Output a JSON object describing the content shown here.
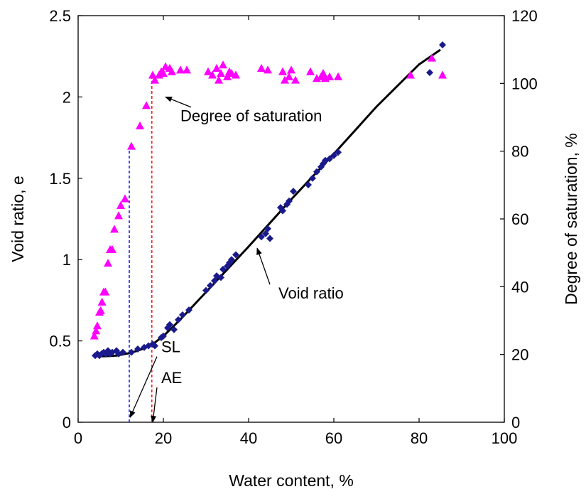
{
  "chart_data": {
    "type": "scatter",
    "xlabel": "Water content, %",
    "ylabel_left": "Void ratio, e",
    "ylabel_right": "Degree of saturation, %",
    "xlim": [
      0,
      100
    ],
    "ylim_left": [
      0,
      2.5
    ],
    "ylim_right": [
      0,
      120
    ],
    "grid": false,
    "x_ticks": [
      "0",
      "20",
      "40",
      "60",
      "80",
      "100"
    ],
    "y_left_ticks": [
      "0",
      "0.5",
      "1",
      "1.5",
      "2",
      "2.5"
    ],
    "y_right_ticks": [
      "0",
      "20",
      "40",
      "60",
      "80",
      "100",
      "120"
    ],
    "series": [
      {
        "axis": "left",
        "marker": "diamond",
        "color": "#1a1a8c",
        "points": [
          [
            4,
            0.41
          ],
          [
            4.5,
            0.42
          ],
          [
            5,
            0.41
          ],
          [
            5.5,
            0.42
          ],
          [
            6,
            0.43
          ],
          [
            6.5,
            0.42
          ],
          [
            7,
            0.44
          ],
          [
            7.5,
            0.42
          ],
          [
            8,
            0.43
          ],
          [
            9,
            0.44
          ],
          [
            9.5,
            0.42
          ],
          [
            10.5,
            0.43
          ],
          [
            12.5,
            0.43
          ],
          [
            14,
            0.45
          ],
          [
            15.5,
            0.46
          ],
          [
            16.5,
            0.47
          ],
          [
            17.5,
            0.48
          ],
          [
            18,
            0.47
          ],
          [
            19.5,
            0.52
          ],
          [
            20,
            0.53
          ],
          [
            21,
            0.58
          ],
          [
            21.5,
            0.6
          ],
          [
            22.5,
            0.57
          ],
          [
            23.5,
            0.63
          ],
          [
            24.5,
            0.66
          ],
          [
            26,
            0.69
          ],
          [
            30,
            0.81
          ],
          [
            31,
            0.84
          ],
          [
            32,
            0.87
          ],
          [
            32.5,
            0.9
          ],
          [
            33.5,
            0.89
          ],
          [
            34,
            0.94
          ],
          [
            35,
            0.96
          ],
          [
            35.5,
            0.98
          ],
          [
            36,
            1.0
          ],
          [
            37,
            1.03
          ],
          [
            43,
            1.14
          ],
          [
            44,
            1.16
          ],
          [
            44.5,
            1.19
          ],
          [
            45,
            1.13
          ],
          [
            47.5,
            1.32
          ],
          [
            48,
            1.3
          ],
          [
            49,
            1.34
          ],
          [
            49.5,
            1.36
          ],
          [
            50.5,
            1.42
          ],
          [
            54,
            1.46
          ],
          [
            55,
            1.5
          ],
          [
            56,
            1.54
          ],
          [
            57,
            1.57
          ],
          [
            57.5,
            1.59
          ],
          [
            58,
            1.61
          ],
          [
            59,
            1.62
          ],
          [
            60,
            1.64
          ],
          [
            61,
            1.66
          ],
          [
            82.5,
            2.15
          ],
          [
            85.5,
            2.32
          ]
        ]
      },
      {
        "axis": "right",
        "marker": "triangle",
        "color": "#ff00ff",
        "points": [
          [
            3.8,
            25.5
          ],
          [
            4.2,
            27
          ],
          [
            4.5,
            28.5
          ],
          [
            5,
            32.5
          ],
          [
            5.3,
            33
          ],
          [
            5.6,
            35.5
          ],
          [
            6,
            38.5
          ],
          [
            6.4,
            38.5
          ],
          [
            7,
            47
          ],
          [
            7.5,
            51
          ],
          [
            8,
            51
          ],
          [
            8.5,
            57
          ],
          [
            9.5,
            61
          ],
          [
            10,
            64
          ],
          [
            11,
            66
          ],
          [
            12.5,
            81.5
          ],
          [
            14.5,
            87.5
          ],
          [
            16,
            93.5
          ],
          [
            17.5,
            102.5
          ],
          [
            18,
            101
          ],
          [
            19,
            102.5
          ],
          [
            19.5,
            103.5
          ],
          [
            20,
            103
          ],
          [
            20.5,
            105
          ],
          [
            21.5,
            104.5
          ],
          [
            22,
            103.5
          ],
          [
            24,
            104
          ],
          [
            25.5,
            104
          ],
          [
            30.5,
            103.5
          ],
          [
            31.5,
            102.5
          ],
          [
            32.5,
            104.5
          ],
          [
            33,
            101
          ],
          [
            33.5,
            103
          ],
          [
            34,
            105.5
          ],
          [
            35,
            102
          ],
          [
            35.5,
            103.5
          ],
          [
            36,
            103
          ],
          [
            37,
            102.5
          ],
          [
            43,
            104.5
          ],
          [
            44.5,
            104
          ],
          [
            48,
            103.5
          ],
          [
            48.5,
            101
          ],
          [
            49.5,
            102
          ],
          [
            50,
            104
          ],
          [
            51,
            101
          ],
          [
            54.5,
            103.5
          ],
          [
            56,
            101.5
          ],
          [
            57,
            102
          ],
          [
            57.5,
            103
          ],
          [
            58,
            101.5
          ],
          [
            59,
            102
          ],
          [
            61,
            102
          ],
          [
            78,
            102.5
          ],
          [
            83,
            107.5
          ],
          [
            85.5,
            102.5
          ]
        ]
      },
      {
        "axis": "left",
        "type": "line",
        "color": "#000000",
        "x": [
          3.5,
          6,
          9,
          12,
          14,
          16,
          18,
          20,
          22,
          25,
          30,
          40,
          50,
          60,
          70,
          80,
          85
        ],
        "values": [
          0.41,
          0.405,
          0.41,
          0.425,
          0.44,
          0.46,
          0.49,
          0.53,
          0.58,
          0.66,
          0.8,
          1.08,
          1.37,
          1.65,
          1.94,
          2.2,
          2.29
        ]
      }
    ],
    "reference_lines": [
      {
        "x": 12,
        "y_left": 1.69,
        "color": "#0000ff"
      },
      {
        "x": 17.3,
        "y_left": 2.13,
        "color": "#ff0000"
      }
    ],
    "annotations": [
      {
        "text": "Degree of saturation",
        "x": 24,
        "y_left": 1.85,
        "arrow_x": 20.5,
        "arrow_y_left": 2.0
      },
      {
        "text": "Void ratio",
        "x": 47,
        "y_left": 0.76,
        "arrow_x": 42,
        "arrow_y_left": 1.07
      },
      {
        "text": "SL",
        "x": 19.5,
        "y_left": 0.43,
        "arrow_x": 12.2,
        "arrow_y_left": 0.03
      },
      {
        "text": "AE",
        "x": 19.5,
        "y_left": 0.24,
        "arrow_x": 17.5,
        "arrow_y_left": 0.0
      }
    ]
  }
}
